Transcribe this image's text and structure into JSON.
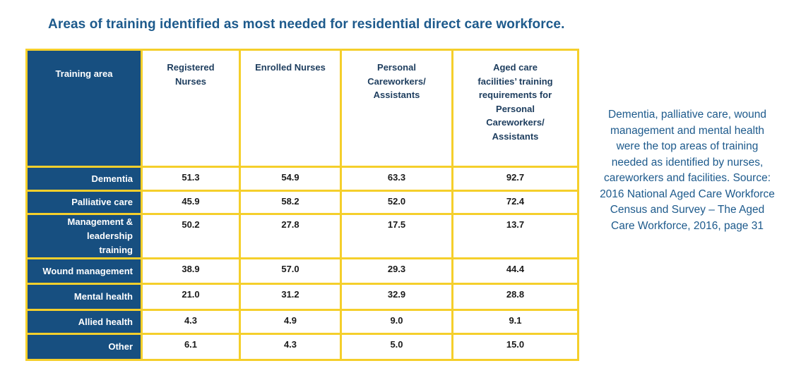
{
  "title": "Areas of training identified as most needed for residential direct care workforce.",
  "table": {
    "headers": [
      "Training area",
      "Registered Nurses",
      "Enrolled Nurses",
      "Personal Careworkers/ Assistants",
      "Aged care facilities’ training requirements for Personal Careworkers/ Assistants"
    ],
    "rows": [
      {
        "area": "Dementia",
        "rn": "51.3",
        "en": "54.9",
        "pc": "63.3",
        "fac": "92.7"
      },
      {
        "area": "Palliative care",
        "rn": "45.9",
        "en": "58.2",
        "pc": "52.0",
        "fac": "72.4"
      },
      {
        "area": "Management & leadership training",
        "rn": "50.2",
        "en": "27.8",
        "pc": "17.5",
        "fac": "13.7"
      },
      {
        "area": "Wound management",
        "rn": "38.9",
        "en": "57.0",
        "pc": "29.3",
        "fac": "44.4"
      },
      {
        "area": "Mental health",
        "rn": "21.0",
        "en": "31.2",
        "pc": "32.9",
        "fac": "28.8"
      },
      {
        "area": "Allied health",
        "rn": "4.3",
        "en": "4.9",
        "pc": "9.0",
        "fac": "9.1"
      },
      {
        "area": "Other",
        "rn": "6.1",
        "en": "4.3",
        "pc": "5.0",
        "fac": "15.0"
      }
    ]
  },
  "caption": "Dementia, palliative care, wound management and mental health were the top areas of training needed as identified by nurses, careworkers and facilities. Source: 2016 National Aged Care Workforce Census and Survey – The Aged Care Workforce, 2016, page 31",
  "colors": {
    "title": "#1d5a8c",
    "header_fill": "#174f80",
    "border": "#f5cf2b"
  }
}
